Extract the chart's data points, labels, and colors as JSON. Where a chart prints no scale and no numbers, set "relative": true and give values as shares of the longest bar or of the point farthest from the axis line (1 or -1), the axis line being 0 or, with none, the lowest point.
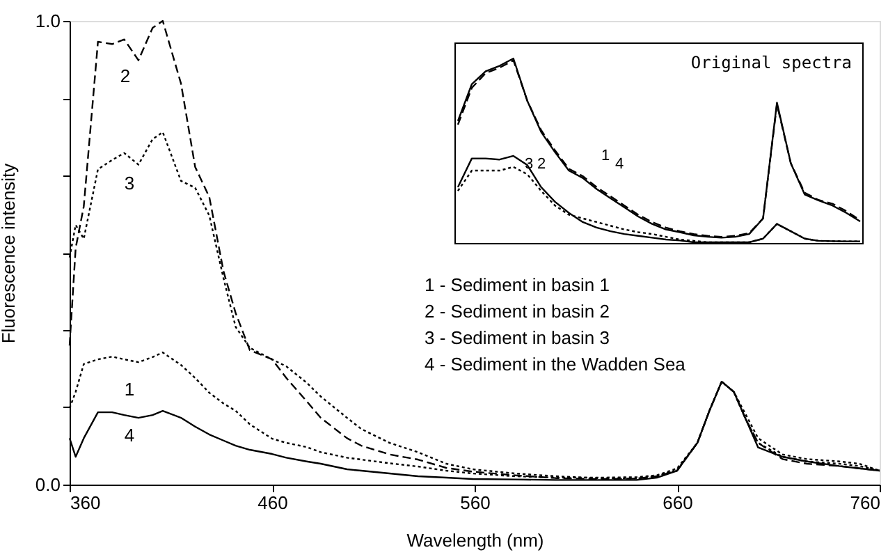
{
  "chart_data": [
    {
      "type": "line",
      "xlabel": "Wavelength (nm)",
      "ylabel": "Fluorescence intensity",
      "x": [
        360,
        363,
        367,
        374,
        381,
        387,
        394,
        401,
        406,
        415,
        422,
        429,
        436,
        442,
        449,
        460,
        467,
        477,
        484,
        497,
        504,
        518,
        532,
        546,
        559,
        580,
        600,
        620,
        640,
        650,
        660,
        670,
        676,
        682,
        688,
        694,
        700,
        712,
        724,
        740,
        750,
        760
      ],
      "xlim": [
        360,
        760
      ],
      "xticks": [
        360,
        460,
        560,
        660,
        760
      ],
      "ylim": [
        0,
        1.0
      ],
      "yticks": [
        {
          "value": 0,
          "label": "0.0"
        },
        {
          "value": 0.167,
          "label": null
        },
        {
          "value": 0.333,
          "label": null
        },
        {
          "value": 0.5,
          "label": null
        },
        {
          "value": 0.667,
          "label": null
        },
        {
          "value": 0.833,
          "label": null
        },
        {
          "value": 1.0,
          "label": "1.0"
        }
      ],
      "series": [
        {
          "color": "#000000",
          "line_style": "dotted",
          "values": [
            0.165,
            0.2,
            0.26,
            0.27,
            0.276,
            0.27,
            0.264,
            0.275,
            0.285,
            0.258,
            0.23,
            0.198,
            0.175,
            0.159,
            0.13,
            0.099,
            0.09,
            0.081,
            0.07,
            0.058,
            0.054,
            0.046,
            0.039,
            0.03,
            0.024,
            0.018,
            0.015,
            0.015,
            0.016,
            0.02,
            0.035,
            0.09,
            0.16,
            0.222,
            0.2,
            0.15,
            0.1,
            0.065,
            0.055,
            0.05,
            0.045,
            0.03
          ]
        },
        {
          "color": "#000000",
          "line_style": "dashed",
          "values": [
            0.3,
            0.51,
            0.6,
            0.955,
            0.95,
            0.96,
            0.915,
            0.985,
            1.0,
            0.865,
            0.685,
            0.62,
            0.46,
            0.37,
            0.29,
            0.27,
            0.23,
            0.18,
            0.144,
            0.1,
            0.084,
            0.065,
            0.054,
            0.036,
            0.028,
            0.02,
            0.014,
            0.012,
            0.013,
            0.018,
            0.03,
            0.09,
            0.16,
            0.222,
            0.2,
            0.14,
            0.09,
            0.055,
            0.045,
            0.04,
            0.035,
            0.03
          ]
        },
        {
          "color": "#000000",
          "line_style": "dotted",
          "values": [
            0.49,
            0.56,
            0.53,
            0.68,
            0.7,
            0.715,
            0.69,
            0.745,
            0.76,
            0.655,
            0.64,
            0.58,
            0.445,
            0.34,
            0.295,
            0.27,
            0.255,
            0.22,
            0.19,
            0.144,
            0.12,
            0.09,
            0.07,
            0.045,
            0.033,
            0.024,
            0.018,
            0.014,
            0.013,
            0.018,
            0.032,
            0.09,
            0.16,
            0.222,
            0.2,
            0.14,
            0.09,
            0.06,
            0.05,
            0.045,
            0.04,
            0.03
          ]
        },
        {
          "color": "#000000",
          "line_style": "solid",
          "values": [
            0.1,
            0.06,
            0.1,
            0.156,
            0.156,
            0.15,
            0.144,
            0.15,
            0.159,
            0.144,
            0.125,
            0.108,
            0.095,
            0.084,
            0.075,
            0.066,
            0.058,
            0.05,
            0.045,
            0.033,
            0.03,
            0.024,
            0.018,
            0.015,
            0.012,
            0.011,
            0.01,
            0.01,
            0.01,
            0.015,
            0.03,
            0.09,
            0.16,
            0.222,
            0.2,
            0.14,
            0.08,
            0.06,
            0.05,
            0.04,
            0.035,
            0.03
          ]
        }
      ],
      "annotations": [
        "2",
        "3",
        "1",
        "4",
        "1 - Sediment in basin 1",
        "2 - Sediment in basin 2",
        "3 - Sediment in basin 3",
        "4 - Sediment in the Wadden Sea"
      ]
    },
    {
      "type": "line",
      "title": "Original spectra",
      "relative": true,
      "categories": [
        null,
        null,
        null,
        null,
        null,
        null,
        null,
        null,
        null,
        null,
        null,
        null,
        null,
        null,
        null,
        null,
        null,
        null,
        null,
        null,
        null,
        null,
        null,
        null,
        null,
        null,
        null,
        null,
        null,
        null
      ],
      "series": [
        {
          "color": "#000000",
          "line_style": "solid",
          "values": [
            0.66,
            0.86,
            0.93,
            0.96,
            1.0,
            0.77,
            0.6,
            0.49,
            0.39,
            0.35,
            0.29,
            0.24,
            0.19,
            0.14,
            0.1,
            0.07,
            0.055,
            0.038,
            0.03,
            0.025,
            0.03,
            0.045,
            0.13,
            0.76,
            0.43,
            0.26,
            0.228,
            0.2,
            0.16,
            0.114
          ]
        },
        {
          "color": "#000000",
          "line_style": "dashed",
          "values": [
            0.64,
            0.84,
            0.92,
            0.95,
            0.99,
            0.77,
            0.61,
            0.5,
            0.4,
            0.36,
            0.3,
            0.25,
            0.2,
            0.15,
            0.11,
            0.08,
            0.06,
            0.045,
            0.035,
            0.03,
            0.035,
            0.05,
            0.13,
            0.75,
            0.43,
            0.27,
            0.23,
            0.21,
            0.17,
            0.12
          ]
        },
        {
          "color": "#000000",
          "line_style": "solid",
          "values": [
            0.3,
            0.456,
            0.456,
            0.45,
            0.47,
            0.42,
            0.3,
            0.22,
            0.16,
            0.11,
            0.08,
            0.06,
            0.045,
            0.035,
            0.025,
            0.015,
            0.01,
            0,
            0,
            0,
            0,
            0,
            0.02,
            0.1,
            0.06,
            0.02,
            0.008,
            0.006,
            0.005,
            0.005
          ]
        },
        {
          "color": "#000000",
          "line_style": "dotted",
          "values": [
            0.28,
            0.39,
            0.39,
            0.39,
            0.41,
            0.37,
            0.28,
            0.2,
            0.15,
            0.13,
            0.11,
            0.09,
            0.07,
            0.055,
            0.045,
            0.03,
            0.015,
            0.008,
            0,
            0,
            0,
            0,
            0.02,
            0.1,
            0.06,
            0.02,
            0.008,
            0.006,
            0.005,
            0.005
          ]
        }
      ],
      "annotations": [
        "3",
        "2",
        "1",
        "4"
      ]
    }
  ]
}
